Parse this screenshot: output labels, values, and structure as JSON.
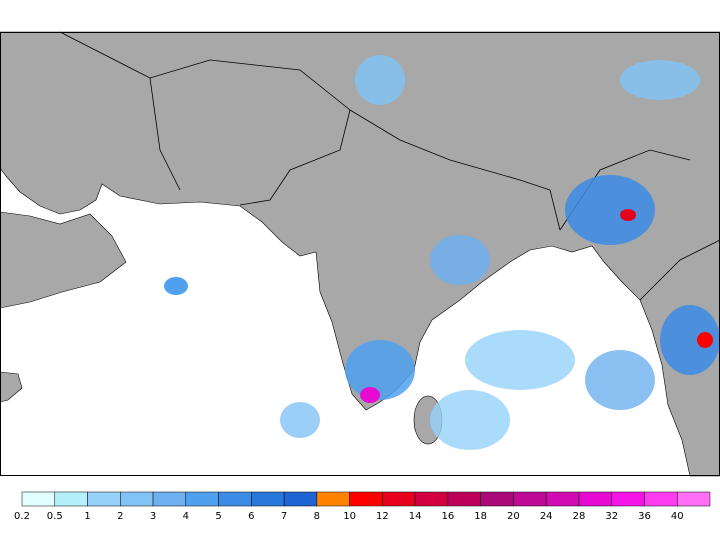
{
  "colorbar": {
    "labels": [
      0.2,
      0.5,
      1,
      2,
      3,
      4,
      5,
      6,
      7,
      8,
      10,
      12,
      14,
      16,
      18,
      20,
      24,
      28,
      32,
      36,
      40
    ],
    "colors": [
      "#e1ffff",
      "#b4f0fa",
      "#96d2fa",
      "#82c3f5",
      "#6eb0f0",
      "#50a0f0",
      "#3c8ce6",
      "#2878dc",
      "#1e64d2",
      "#ff8200",
      "#ff0000",
      "#e6001e",
      "#d2003c",
      "#be005a",
      "#aa0a78",
      "#be0a96",
      "#d20ab4",
      "#e60ad2",
      "#f514e6",
      "#ff3cf0",
      "#ff6ef5"
    ]
  }
}
